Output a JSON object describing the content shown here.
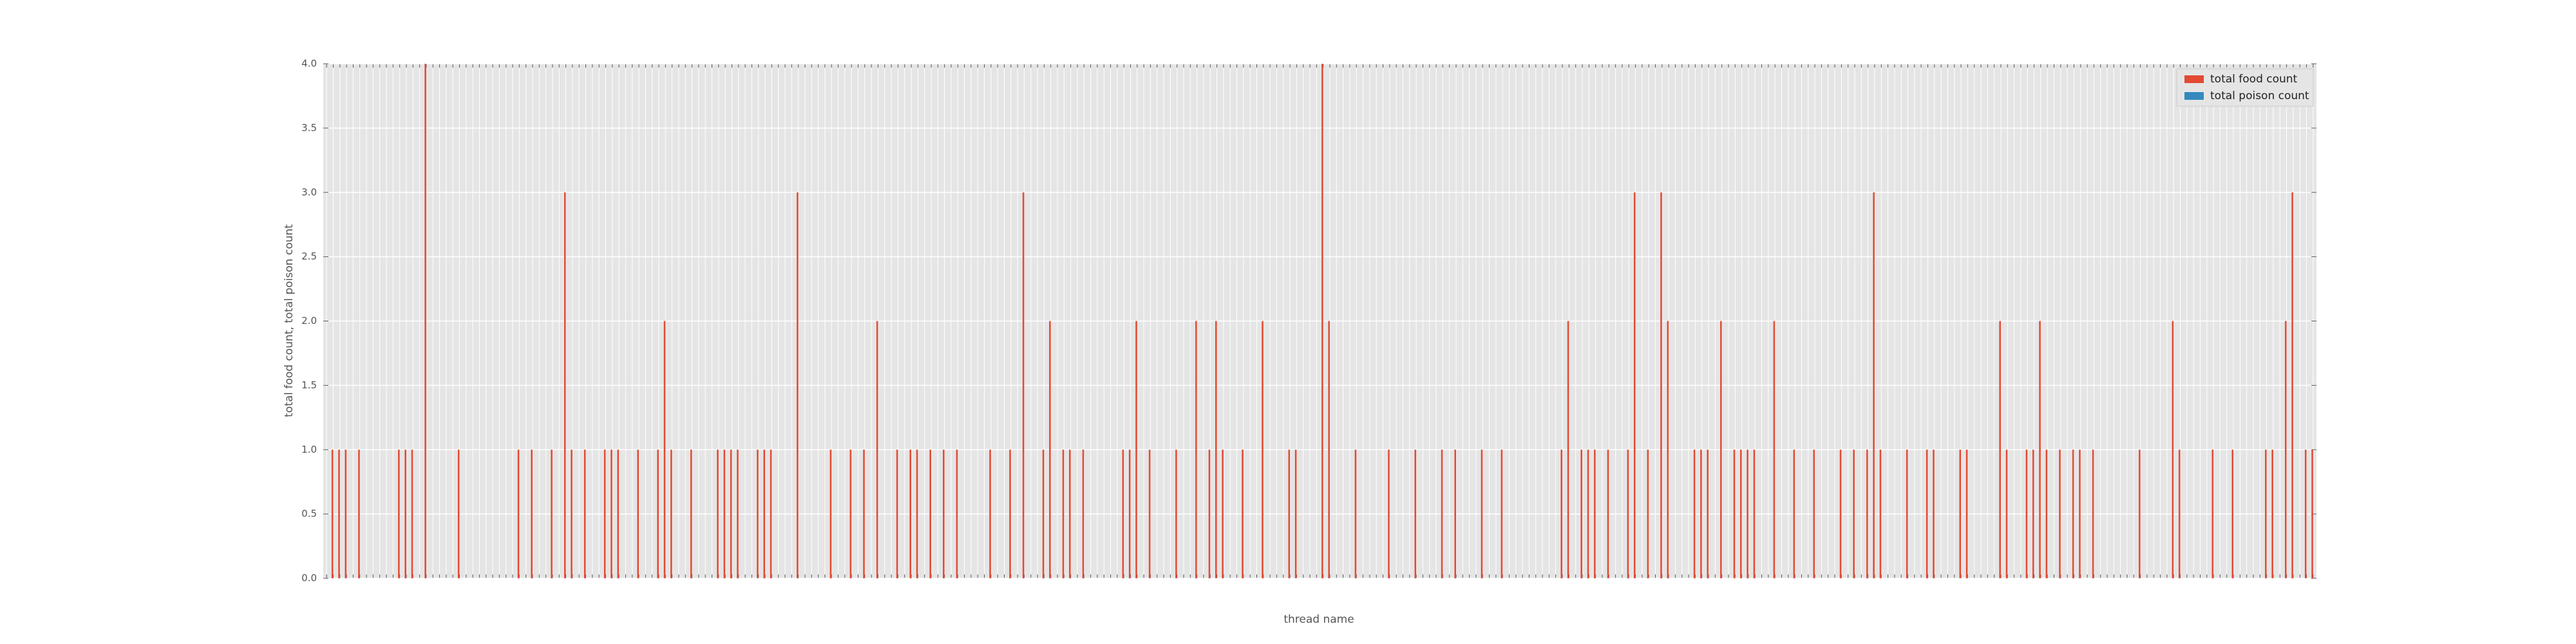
{
  "chart_data": {
    "type": "bar",
    "xlabel": "thread name",
    "ylabel": "total food count, total poison count",
    "categories": [
      null,
      null,
      null,
      null,
      null,
      null,
      null,
      null,
      null,
      null,
      null,
      null,
      null,
      null,
      null,
      null,
      null,
      null,
      null,
      null,
      null,
      null,
      null,
      null,
      null,
      null,
      null,
      null,
      null,
      null,
      null,
      null,
      null,
      null,
      null,
      null,
      null,
      null,
      null,
      null,
      null,
      null,
      null,
      null,
      null,
      null,
      null,
      null,
      null,
      null,
      null,
      null,
      null,
      null,
      null,
      null,
      null,
      null,
      null,
      null,
      null,
      null,
      null,
      null,
      null,
      null,
      null,
      null,
      null,
      null,
      null,
      null,
      null,
      null,
      null,
      null,
      null,
      null,
      null,
      null,
      null,
      null,
      null,
      null,
      null,
      null,
      null,
      null,
      null,
      null,
      null,
      null,
      null,
      null,
      null,
      null,
      null,
      null,
      null,
      null,
      null,
      null,
      null,
      null,
      null,
      null,
      null,
      null,
      null,
      null,
      null,
      null,
      null,
      null,
      null,
      null,
      null,
      null,
      null,
      null,
      null,
      null,
      null,
      null,
      null,
      null,
      null,
      null,
      null,
      null,
      null,
      null,
      null,
      null,
      null,
      null,
      null,
      null,
      null,
      null,
      null,
      null,
      null,
      null,
      null,
      null,
      null,
      null,
      null,
      null,
      null,
      null,
      null,
      null,
      null,
      null,
      null,
      null,
      null,
      null,
      null,
      null,
      null,
      null,
      null,
      null,
      null,
      null,
      null,
      null,
      null,
      null,
      null,
      null,
      null,
      null,
      null,
      null,
      null,
      null,
      null,
      null,
      null,
      null,
      null,
      null,
      null,
      null,
      null,
      null,
      null,
      null,
      null,
      null,
      null,
      null,
      null,
      null,
      null,
      null,
      null,
      null,
      null,
      null,
      null,
      null,
      null,
      null,
      null,
      null,
      null,
      null,
      null,
      null,
      null,
      null,
      null,
      null,
      null,
      null,
      null,
      null,
      null,
      null,
      null,
      null,
      null,
      null,
      null,
      null,
      null,
      null,
      null,
      null,
      null,
      null,
      null,
      null,
      null,
      null,
      null,
      null,
      null,
      null,
      null,
      null,
      null,
      null,
      null,
      null,
      null,
      null,
      null,
      null,
      null,
      null,
      null,
      null,
      null,
      null,
      null,
      null,
      null,
      null,
      null,
      null,
      null,
      null,
      null,
      null,
      null,
      null,
      null,
      null,
      null,
      null,
      null,
      null,
      null,
      null,
      null,
      null,
      null,
      null,
      null,
      null,
      null,
      null,
      null,
      null,
      null,
      null,
      null,
      null,
      null,
      null,
      null,
      null,
      null,
      null
    ],
    "series": [
      {
        "name": "total food count",
        "color": "#e24a33",
        "values": [
          0,
          1,
          1,
          1,
          0,
          1,
          0,
          0,
          0,
          0,
          0,
          1,
          1,
          1,
          0,
          4,
          0,
          0,
          0,
          0,
          1,
          0,
          0,
          0,
          0,
          0,
          0,
          0,
          0,
          1,
          0,
          1,
          0,
          0,
          1,
          0,
          3,
          1,
          0,
          1,
          0,
          0,
          1,
          1,
          1,
          0,
          0,
          1,
          0,
          0,
          1,
          2,
          1,
          0,
          0,
          1,
          0,
          0,
          0,
          1,
          1,
          1,
          1,
          0,
          0,
          1,
          1,
          1,
          0,
          0,
          0,
          3,
          0,
          0,
          0,
          0,
          1,
          0,
          0,
          1,
          0,
          1,
          0,
          2,
          0,
          0,
          1,
          0,
          1,
          1,
          0,
          1,
          0,
          1,
          0,
          1,
          0,
          0,
          0,
          0,
          1,
          0,
          0,
          1,
          0,
          3,
          0,
          0,
          1,
          2,
          0,
          1,
          1,
          0,
          1,
          0,
          0,
          0,
          0,
          0,
          1,
          1,
          2,
          0,
          1,
          0,
          0,
          0,
          1,
          0,
          0,
          2,
          0,
          1,
          2,
          1,
          0,
          0,
          1,
          0,
          0,
          2,
          0,
          0,
          0,
          1,
          1,
          0,
          0,
          0,
          4,
          2,
          0,
          0,
          0,
          1,
          0,
          0,
          0,
          0,
          1,
          0,
          0,
          0,
          1,
          0,
          0,
          0,
          1,
          0,
          1,
          0,
          0,
          0,
          1,
          0,
          0,
          1,
          0,
          0,
          0,
          0,
          0,
          0,
          0,
          0,
          1,
          2,
          0,
          1,
          1,
          1,
          0,
          1,
          0,
          0,
          1,
          3,
          0,
          1,
          0,
          3,
          2,
          0,
          0,
          0,
          1,
          1,
          1,
          0,
          2,
          0,
          1,
          1,
          1,
          1,
          0,
          0,
          2,
          0,
          0,
          1,
          0,
          0,
          1,
          0,
          0,
          0,
          1,
          0,
          1,
          0,
          1,
          3,
          1,
          0,
          0,
          0,
          1,
          0,
          0,
          1,
          1,
          0,
          0,
          0,
          1,
          1,
          0,
          0,
          0,
          0,
          2,
          1,
          0,
          0,
          1,
          1,
          2,
          1,
          0,
          1,
          0,
          1,
          1,
          0,
          1,
          0,
          0,
          0,
          0,
          0,
          0,
          1,
          0,
          0,
          0,
          0,
          2,
          1,
          0,
          0,
          0,
          0,
          1,
          0,
          0,
          1,
          0,
          0,
          0,
          0,
          1,
          1,
          0,
          2,
          3,
          0,
          1,
          1
        ]
      },
      {
        "name": "total poison count",
        "color": "#348abd",
        "values": [
          0,
          0,
          0,
          0,
          0,
          0,
          0,
          0,
          0,
          0,
          0,
          0,
          0,
          0,
          0,
          0,
          0,
          0,
          0,
          0,
          0,
          0,
          0,
          0,
          0,
          0,
          0,
          0,
          0,
          0,
          0,
          0,
          0,
          0,
          0,
          0,
          0,
          0,
          0,
          0,
          0,
          0,
          0,
          0,
          0,
          0,
          0,
          0,
          0,
          0,
          0,
          0,
          0,
          0,
          0,
          0,
          0,
          0,
          0,
          0,
          0,
          0,
          0,
          0,
          0,
          0,
          0,
          0,
          0,
          0,
          0,
          0,
          0,
          0,
          0,
          0,
          0,
          0,
          0,
          0,
          0,
          0,
          0,
          0,
          0,
          0,
          0,
          0,
          0,
          0,
          0,
          0,
          0,
          0,
          0,
          0,
          0,
          0,
          0,
          0,
          0,
          0,
          0,
          0,
          0,
          0,
          0,
          0,
          0,
          0,
          0,
          0,
          0,
          0,
          0,
          0,
          0,
          0,
          0,
          0,
          0,
          0,
          0,
          0,
          0,
          0,
          0,
          0,
          0,
          0,
          0,
          0,
          0,
          0,
          0,
          0,
          0,
          0,
          0,
          0,
          0,
          0,
          0,
          0,
          0,
          0,
          0,
          0,
          0,
          0,
          0,
          0,
          0,
          0,
          0,
          0,
          0,
          0,
          0,
          0,
          0,
          0,
          0,
          0,
          0,
          0,
          0,
          0,
          0,
          0,
          0,
          0,
          0,
          0,
          0,
          0,
          0,
          0,
          0,
          0,
          0,
          0,
          0,
          0,
          0,
          0,
          0,
          0,
          0,
          0,
          0,
          0,
          0,
          0,
          0,
          0,
          0,
          0,
          0,
          0,
          0,
          0,
          0,
          0,
          0,
          0,
          0,
          0,
          0,
          0,
          0,
          0,
          0,
          0,
          0,
          0,
          0,
          0,
          0,
          0,
          0,
          0,
          0,
          0,
          0,
          0,
          0,
          0,
          0,
          0,
          0,
          0,
          0,
          0,
          0,
          0,
          0,
          0,
          0,
          0,
          0,
          0,
          0,
          0,
          0,
          0,
          0,
          0,
          0,
          0,
          0,
          0,
          0,
          0,
          0,
          0,
          0,
          0,
          0,
          0,
          0,
          0,
          0,
          0,
          0,
          0,
          0,
          0,
          0,
          0,
          0,
          0,
          0,
          0,
          0,
          0,
          0,
          0,
          0,
          0,
          0,
          0,
          0,
          0,
          0,
          0,
          0,
          0,
          0,
          0,
          0,
          0,
          0,
          0,
          0,
          0,
          0,
          0,
          0,
          0
        ]
      }
    ],
    "ylim": [
      0,
      4
    ],
    "yticks": [
      {
        "value": 0,
        "label": "0.0"
      },
      0.5,
      {
        "value": 1,
        "label": "1.0"
      },
      1.5,
      {
        "value": 2,
        "label": "2.0"
      },
      2.5,
      {
        "value": 3,
        "label": "3.0"
      },
      3.5,
      {
        "value": 4,
        "label": "4.0"
      }
    ],
    "grid": true,
    "legend": "upper right"
  }
}
